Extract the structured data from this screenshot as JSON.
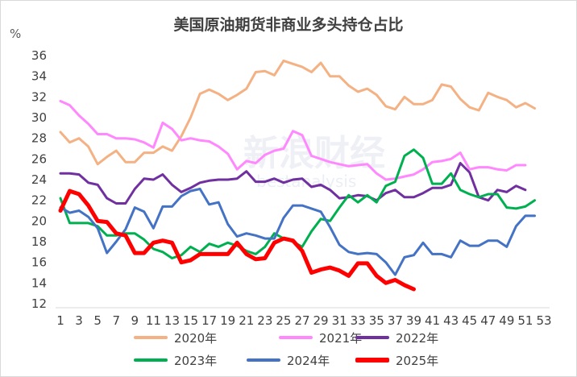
{
  "chart_data": {
    "type": "line",
    "title": "美国原油期货非商业多头持仓占比",
    "ylabel": "%",
    "xlabel": "",
    "x": [
      1,
      2,
      3,
      4,
      5,
      6,
      7,
      8,
      9,
      10,
      11,
      12,
      13,
      14,
      15,
      16,
      17,
      18,
      19,
      20,
      21,
      22,
      23,
      24,
      25,
      26,
      27,
      28,
      29,
      30,
      31,
      32,
      33,
      34,
      35,
      36,
      37,
      38,
      39,
      40,
      41,
      42,
      43,
      44,
      45,
      46,
      47,
      48,
      49,
      50,
      51,
      52,
      53
    ],
    "x_tick_labels": [
      "1",
      "3",
      "5",
      "7",
      "9",
      "11",
      "13",
      "15",
      "17",
      "19",
      "21",
      "23",
      "25",
      "27",
      "29",
      "31",
      "33",
      "35",
      "37",
      "39",
      "41",
      "43",
      "45",
      "47",
      "49",
      "51",
      "53"
    ],
    "ylim": [
      12,
      36
    ],
    "y_ticks": [
      "12",
      "14",
      "16",
      "18",
      "20",
      "22",
      "24",
      "26",
      "28",
      "30",
      "32",
      "34",
      "36"
    ],
    "grid": false,
    "legend_position": "bottom",
    "series": [
      {
        "name": "2020年",
        "color": "#F4B183",
        "values": [
          28.6,
          27.6,
          28.0,
          27.2,
          25.5,
          26.2,
          26.8,
          25.7,
          25.7,
          26.6,
          26.6,
          27.2,
          26.8,
          28.2,
          30.0,
          32.3,
          32.7,
          32.3,
          31.7,
          32.2,
          32.8,
          34.4,
          34.5,
          34.1,
          35.5,
          35.2,
          34.9,
          34.4,
          35.3,
          34.0,
          34.0,
          33.1,
          32.5,
          32.8,
          32.2,
          31.1,
          30.8,
          32.0,
          31.3,
          31.3,
          31.7,
          33.2,
          33.0,
          31.8,
          31.0,
          30.7,
          32.4,
          32.0,
          31.7,
          31.0,
          31.4,
          30.9,
          null
        ]
      },
      {
        "name": "2021年",
        "color": "#FF88FF",
        "values": [
          31.6,
          31.2,
          30.2,
          29.4,
          28.4,
          28.4,
          28.0,
          28.0,
          27.9,
          27.6,
          27.1,
          29.5,
          28.9,
          27.8,
          28.0,
          27.8,
          27.7,
          27.2,
          26.5,
          25.0,
          25.8,
          25.6,
          26.4,
          26.8,
          27.0,
          28.7,
          28.3,
          26.3,
          26.0,
          25.7,
          25.5,
          25.3,
          25.4,
          25.5,
          24.6,
          24.0,
          24.1,
          24.3,
          24.5,
          25.0,
          25.7,
          25.8,
          26.0,
          26.6,
          25.0,
          25.2,
          25.2,
          25.0,
          24.9,
          25.4,
          25.4,
          null,
          null
        ]
      },
      {
        "name": "2022年",
        "color": "#7030A0",
        "values": [
          24.6,
          24.6,
          24.5,
          23.7,
          23.5,
          22.2,
          21.7,
          21.7,
          23.1,
          24.1,
          24.0,
          24.5,
          23.5,
          22.8,
          23.2,
          23.7,
          23.9,
          24.0,
          24.0,
          24.1,
          24.8,
          23.8,
          23.8,
          24.1,
          23.7,
          24.0,
          24.1,
          23.3,
          23.5,
          23.0,
          22.2,
          22.3,
          22.5,
          22.4,
          22.0,
          22.7,
          23.0,
          22.3,
          22.3,
          22.7,
          23.2,
          23.2,
          23.5,
          25.6,
          24.7,
          22.3,
          22.0,
          23.0,
          22.8,
          23.4,
          23.0,
          null,
          null
        ]
      },
      {
        "name": "2023年",
        "color": "#00B050",
        "values": [
          22.2,
          19.8,
          19.8,
          19.8,
          19.5,
          18.6,
          18.6,
          18.8,
          18.8,
          18.2,
          17.3,
          17.0,
          16.4,
          16.7,
          17.5,
          17.0,
          17.8,
          17.5,
          17.9,
          17.6,
          17.1,
          16.8,
          17.5,
          18.8,
          18.3,
          18.0,
          17.5,
          19.0,
          20.2,
          20.0,
          21.3,
          22.5,
          21.8,
          22.5,
          21.8,
          23.4,
          23.8,
          26.3,
          26.9,
          26.1,
          23.6,
          23.6,
          24.6,
          23.0,
          22.6,
          22.3,
          22.6,
          22.6,
          21.3,
          21.2,
          21.4,
          22.0,
          null
        ]
      },
      {
        "name": "2024年",
        "color": "#4472C4",
        "values": [
          21.3,
          20.8,
          21.0,
          20.4,
          19.3,
          16.9,
          18.0,
          19.2,
          21.3,
          20.9,
          19.3,
          21.4,
          21.4,
          22.4,
          22.9,
          23.1,
          21.6,
          21.8,
          19.7,
          18.5,
          18.8,
          18.6,
          18.3,
          18.3,
          20.3,
          21.5,
          21.5,
          21.2,
          20.9,
          19.4,
          17.7,
          17.0,
          16.8,
          16.9,
          16.8,
          16.0,
          14.8,
          16.5,
          16.7,
          17.9,
          16.8,
          16.8,
          16.5,
          18.1,
          17.6,
          17.6,
          18.1,
          18.1,
          17.5,
          19.5,
          20.5,
          20.5,
          null
        ]
      },
      {
        "name": "2025年",
        "color": "#FF0000",
        "values": [
          21.0,
          22.9,
          22.6,
          21.5,
          20.0,
          19.9,
          18.8,
          18.6,
          16.9,
          16.9,
          17.9,
          18.1,
          17.9,
          16.0,
          16.2,
          16.8,
          16.8,
          16.8,
          16.8,
          17.9,
          16.8,
          16.3,
          16.4,
          17.9,
          18.3,
          18.1,
          17.1,
          15.0,
          15.3,
          15.5,
          15.2,
          14.7,
          15.9,
          15.9,
          14.7,
          14.0,
          14.3,
          13.8,
          13.4,
          null,
          null,
          null,
          null,
          null,
          null,
          null,
          null,
          null,
          null,
          null,
          null,
          null,
          null
        ]
      }
    ]
  }
}
